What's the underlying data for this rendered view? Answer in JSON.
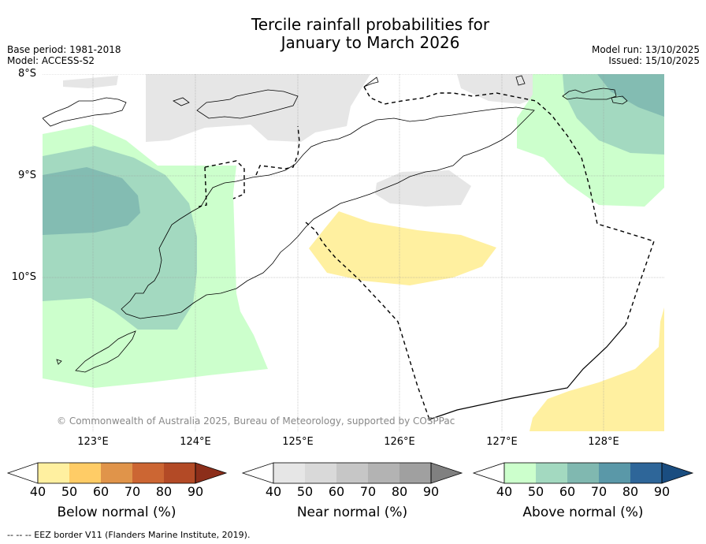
{
  "title": {
    "line1": "Tercile rainfall probabilities for",
    "line2": "January to March 2026"
  },
  "meta_left": {
    "base_period": "Base period: 1981-2018",
    "model": "Model: ACCESS-S2"
  },
  "meta_right": {
    "model_run": "Model run: 13/10/2025",
    "issued": "Issued: 15/10/2025"
  },
  "lat_labels": [
    "8°S",
    "9°S",
    "10°S"
  ],
  "lon_labels": [
    "123°E",
    "124°E",
    "125°E",
    "126°E",
    "127°E",
    "128°E"
  ],
  "credit": "© Commonwealth of Australia 2025, Bureau of Meteorology, supported by COSPPac",
  "legends": [
    {
      "name": "Below normal (%)",
      "ticks": [
        "40",
        "50",
        "60",
        "70",
        "80",
        "90"
      ],
      "colors": [
        "#fff0a0",
        "#ffcc66",
        "#e0944a",
        "#cc6633",
        "#b34a26",
        "#8c2e1a"
      ]
    },
    {
      "name": "Near normal (%)",
      "ticks": [
        "40",
        "50",
        "60",
        "70",
        "80",
        "90"
      ],
      "colors": [
        "#e6e6e6",
        "#d9d9d9",
        "#c6c6c6",
        "#b3b3b3",
        "#a0a0a0",
        "#808080"
      ]
    },
    {
      "name": "Above normal (%)",
      "ticks": [
        "40",
        "50",
        "60",
        "70",
        "80",
        "90"
      ],
      "colors": [
        "#ccffcc",
        "#a3d9c0",
        "#80b8b0",
        "#5a98a8",
        "#2e6699",
        "#1a4d80"
      ]
    }
  ],
  "footer": "--  --  -- EEZ border V11 (Flanders Marine Institute, 2019)."
}
